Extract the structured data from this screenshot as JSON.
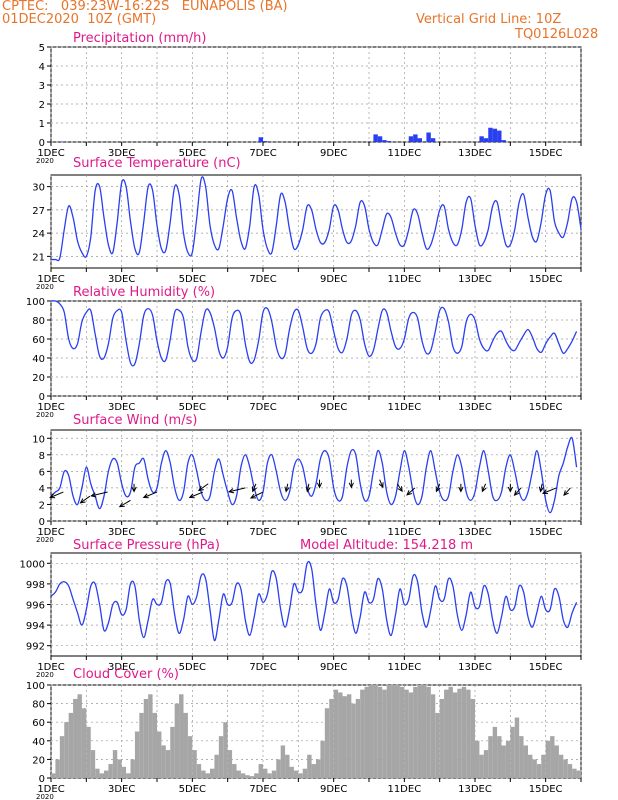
{
  "header": {
    "line1_left": "CPTEC:   039:23W-16:22S   EUNAPOLIS (BA)",
    "line2_left": "01DEC2020  10Z (GMT)",
    "line1_right": "Vertical Grid Line: 10Z",
    "line2_right": "TQ0126L028"
  },
  "colors": {
    "header": "#e8742a",
    "title": "#e0198a",
    "series": "#2a3ff0",
    "cloud": "#a6a6a6",
    "grid": "#9a9a9a",
    "arrow": "#000000"
  },
  "x_ticks": [
    "1DEC",
    "3DEC",
    "5DEC",
    "7DEC",
    "9DEC",
    "11DEC",
    "13DEC",
    "15DEC"
  ],
  "year_label": "2020",
  "chart_data": [
    {
      "id": "precip",
      "type": "bar",
      "title": "Precipitation (mm/h)",
      "ylim": [
        0,
        5
      ],
      "yticks": [
        0,
        1,
        2,
        3,
        4,
        5
      ],
      "x_start_day": 1,
      "step_hours": 3,
      "values": [
        0,
        0,
        0.03,
        0,
        0,
        0,
        0,
        0,
        0,
        0,
        0,
        0,
        0,
        0,
        0,
        0,
        0,
        0,
        0,
        0,
        0,
        0,
        0,
        0,
        0,
        0,
        0,
        0,
        0,
        0,
        0,
        0,
        0,
        0,
        0,
        0,
        0,
        0,
        0,
        0,
        0,
        0,
        0,
        0,
        0,
        0,
        0,
        0.25,
        0.05,
        0,
        0,
        0,
        0,
        0,
        0,
        0,
        0,
        0,
        0,
        0,
        0,
        0,
        0,
        0,
        0,
        0,
        0,
        0,
        0,
        0,
        0,
        0,
        0,
        0.4,
        0.3,
        0.1,
        0.05,
        0,
        0,
        0,
        0,
        0.3,
        0.4,
        0.2,
        0,
        0.5,
        0.2,
        0,
        0,
        0,
        0,
        0,
        0,
        0,
        0,
        0,
        0,
        0.3,
        0.2,
        0.75,
        0.7,
        0.6,
        0.1,
        0,
        0,
        0,
        0,
        0,
        0,
        0,
        0,
        0,
        0,
        0,
        0,
        0,
        0,
        0,
        0
      ]
    },
    {
      "id": "temp",
      "type": "line",
      "title": "Surface Temperature (nC)",
      "ylim": [
        19.5,
        31.5
      ],
      "yticks": [
        21,
        24,
        27,
        30
      ],
      "x_start_day": 1,
      "step_hours": 3,
      "values": [
        20.6,
        20.6,
        20.8,
        24.5,
        27.5,
        26.0,
        23.0,
        21.5,
        21.0,
        23.5,
        29.5,
        30.0,
        26.0,
        22.5,
        21.5,
        25.5,
        30.5,
        30.0,
        25.5,
        22.0,
        21.5,
        25.5,
        30.0,
        29.5,
        25.0,
        22.0,
        21.8,
        25.5,
        30.0,
        29.0,
        24.0,
        21.5,
        21.5,
        26.0,
        31.0,
        30.0,
        25.0,
        22.5,
        22.0,
        25.0,
        28.5,
        29.5,
        26.0,
        23.0,
        22.0,
        25.0,
        30.0,
        29.0,
        24.5,
        22.0,
        21.5,
        25.0,
        29.0,
        28.0,
        24.5,
        22.0,
        22.5,
        24.5,
        27.5,
        27.0,
        24.5,
        22.8,
        22.8,
        24.5,
        27.5,
        27.0,
        24.5,
        22.8,
        23.0,
        25.0,
        28.0,
        27.5,
        24.5,
        22.8,
        22.5,
        24.5,
        26.5,
        26.0,
        24.0,
        22.5,
        22.5,
        24.5,
        27.0,
        26.5,
        24.0,
        22.0,
        22.5,
        24.5,
        27.0,
        27.5,
        24.5,
        22.8,
        22.5,
        24.5,
        28.0,
        28.5,
        25.0,
        22.5,
        22.8,
        24.5,
        27.5,
        28.0,
        25.0,
        22.5,
        22.5,
        24.5,
        28.0,
        29.0,
        26.0,
        23.5,
        23.0,
        25.5,
        29.0,
        29.5,
        25.5,
        24.0,
        23.5,
        25.5,
        28.5,
        28.0,
        24.5
      ]
    },
    {
      "id": "rh",
      "type": "line",
      "title": "Relative Humidity (%)",
      "ylim": [
        0,
        100
      ],
      "yticks": [
        0,
        20,
        40,
        60,
        80,
        100
      ],
      "x_start_day": 1,
      "step_hours": 3,
      "values": [
        100,
        100,
        97,
        88,
        60,
        50,
        55,
        78,
        88,
        90,
        65,
        42,
        40,
        55,
        82,
        90,
        88,
        58,
        35,
        34,
        55,
        85,
        92,
        85,
        58,
        40,
        38,
        60,
        88,
        90,
        82,
        52,
        38,
        40,
        68,
        90,
        88,
        72,
        48,
        40,
        52,
        82,
        90,
        85,
        55,
        36,
        38,
        58,
        88,
        92,
        78,
        52,
        40,
        44,
        70,
        88,
        90,
        72,
        50,
        45,
        55,
        82,
        90,
        88,
        68,
        50,
        46,
        60,
        85,
        90,
        80,
        55,
        42,
        48,
        70,
        90,
        88,
        68,
        52,
        50,
        60,
        82,
        88,
        82,
        58,
        45,
        48,
        68,
        90,
        92,
        78,
        52,
        45,
        52,
        78,
        86,
        80,
        60,
        50,
        48,
        58,
        66,
        68,
        58,
        50,
        48,
        56,
        64,
        70,
        62,
        50,
        46,
        55,
        62,
        66,
        55,
        45,
        50,
        58,
        68
      ]
    },
    {
      "id": "wind",
      "type": "line",
      "title": "Surface Wind (m/s)",
      "ylim": [
        0,
        11
      ],
      "yticks": [
        0,
        2,
        4,
        6,
        8,
        10
      ],
      "x_start_day": 1,
      "step_hours": 3,
      "values": [
        3.0,
        3.5,
        4.0,
        6.0,
        5.5,
        3.0,
        2.0,
        4.0,
        6.5,
        4.5,
        3.0,
        1.5,
        3.0,
        6.0,
        7.5,
        7.0,
        4.5,
        3.0,
        3.5,
        6.5,
        7.0,
        7.5,
        5.0,
        3.5,
        4.0,
        7.0,
        8.5,
        7.0,
        4.0,
        2.5,
        3.5,
        7.0,
        8.0,
        6.0,
        3.5,
        2.5,
        3.0,
        6.0,
        7.5,
        5.5,
        3.5,
        2.0,
        3.0,
        6.5,
        8.0,
        6.5,
        4.0,
        2.5,
        3.5,
        7.0,
        8.0,
        6.0,
        3.5,
        2.5,
        3.5,
        6.5,
        7.5,
        6.5,
        4.0,
        3.0,
        4.5,
        7.5,
        8.5,
        7.5,
        4.0,
        2.5,
        3.0,
        6.5,
        8.5,
        8.0,
        4.5,
        2.5,
        3.0,
        6.0,
        8.5,
        7.0,
        3.5,
        2.0,
        3.0,
        6.0,
        8.5,
        6.5,
        3.5,
        2.0,
        3.0,
        6.5,
        8.5,
        6.0,
        3.5,
        2.5,
        3.0,
        6.0,
        8.0,
        6.5,
        3.5,
        2.5,
        3.5,
        6.5,
        8.5,
        6.0,
        3.0,
        2.5,
        3.5,
        6.5,
        8.0,
        6.0,
        3.5,
        2.5,
        3.5,
        6.0,
        8.5,
        6.0,
        2.5,
        1.0,
        2.5,
        5.5,
        7.0,
        9.0,
        10.0,
        6.5
      ],
      "arrows": [
        {
          "day": 1.35,
          "speed": 3.5,
          "dir_deg": 225
        },
        {
          "day": 2.1,
          "speed": 3.0,
          "dir_deg": 240
        },
        {
          "day": 2.6,
          "speed": 3.5,
          "dir_deg": 210
        },
        {
          "day": 3.35,
          "speed": 4.5,
          "dir_deg": 270
        },
        {
          "day": 3.25,
          "speed": 2.5,
          "dir_deg": 235
        },
        {
          "day": 4.0,
          "speed": 3.5,
          "dir_deg": 225
        },
        {
          "day": 5.3,
          "speed": 3.5,
          "dir_deg": 225
        },
        {
          "day": 5.45,
          "speed": 4.5,
          "dir_deg": 240
        },
        {
          "day": 6.5,
          "speed": 4.0,
          "dir_deg": 210
        },
        {
          "day": 6.8,
          "speed": 4.5,
          "dir_deg": 260
        },
        {
          "day": 7.0,
          "speed": 3.5,
          "dir_deg": 230
        },
        {
          "day": 7.7,
          "speed": 4.5,
          "dir_deg": 265
        },
        {
          "day": 8.3,
          "speed": 4.5,
          "dir_deg": 265
        },
        {
          "day": 8.6,
          "speed": 5.0,
          "dir_deg": 270
        },
        {
          "day": 9.5,
          "speed": 5.0,
          "dir_deg": 270
        },
        {
          "day": 10.3,
          "speed": 5.0,
          "dir_deg": 280
        },
        {
          "day": 10.8,
          "speed": 4.5,
          "dir_deg": 285
        },
        {
          "day": 11.3,
          "speed": 4.0,
          "dir_deg": 245
        },
        {
          "day": 12.0,
          "speed": 4.5,
          "dir_deg": 260
        },
        {
          "day": 12.6,
          "speed": 4.5,
          "dir_deg": 270
        },
        {
          "day": 13.3,
          "speed": 4.5,
          "dir_deg": 260
        },
        {
          "day": 14.0,
          "speed": 4.5,
          "dir_deg": 270
        },
        {
          "day": 14.3,
          "speed": 4.0,
          "dir_deg": 250
        },
        {
          "day": 14.9,
          "speed": 4.5,
          "dir_deg": 265
        },
        {
          "day": 15.3,
          "speed": 4.0,
          "dir_deg": 225
        },
        {
          "day": 15.7,
          "speed": 4.0,
          "dir_deg": 250
        }
      ]
    },
    {
      "id": "pressure",
      "type": "line",
      "title": "Surface Pressure (hPa)",
      "annotation": "Model Altitude: 154.218  m",
      "ylim": [
        991,
        1001
      ],
      "yticks": [
        992,
        994,
        996,
        998,
        1000
      ],
      "x_start_day": 1,
      "step_hours": 3,
      "values": [
        996.8,
        997.2,
        998.0,
        998.2,
        997.8,
        996.5,
        995.2,
        994.0,
        995.5,
        997.8,
        998.0,
        996.0,
        993.5,
        994.2,
        996.0,
        996.2,
        995.0,
        995.5,
        998.0,
        997.8,
        994.5,
        992.8,
        994.5,
        996.5,
        996.0,
        996.2,
        998.2,
        998.0,
        995.0,
        993.2,
        994.5,
        996.8,
        996.0,
        996.8,
        998.8,
        998.5,
        995.5,
        992.5,
        994.5,
        997.0,
        996.0,
        996.2,
        998.0,
        997.5,
        994.5,
        993.0,
        994.8,
        997.0,
        996.2,
        997.0,
        999.2,
        998.5,
        995.5,
        993.8,
        995.5,
        998.0,
        997.2,
        997.5,
        1000.0,
        999.5,
        996.0,
        993.5,
        995.2,
        997.5,
        996.2,
        996.5,
        998.5,
        997.8,
        995.0,
        993.2,
        994.8,
        997.2,
        996.2,
        996.5,
        998.5,
        997.5,
        994.5,
        993.0,
        995.0,
        997.5,
        996.0,
        996.5,
        998.8,
        998.2,
        995.2,
        993.8,
        995.5,
        997.8,
        996.5,
        996.5,
        998.5,
        997.8,
        995.0,
        993.5,
        995.0,
        997.2,
        995.8,
        995.8,
        997.8,
        997.0,
        994.5,
        993.2,
        994.8,
        996.8,
        995.5,
        995.8,
        997.8,
        997.2,
        994.8,
        993.8,
        995.2,
        996.8,
        995.5,
        995.5,
        997.5,
        996.8,
        994.5,
        993.8,
        995.2,
        996.2
      ]
    },
    {
      "id": "cloud",
      "type": "bar",
      "title": "Cloud Cover (%)",
      "ylim": [
        0,
        100
      ],
      "yticks": [
        0,
        20,
        40,
        60,
        80,
        100
      ],
      "x_start_day": 1,
      "step_hours": 3,
      "values": [
        5,
        20,
        45,
        60,
        70,
        85,
        90,
        75,
        55,
        30,
        10,
        5,
        8,
        15,
        30,
        20,
        12,
        5,
        20,
        50,
        70,
        85,
        90,
        70,
        50,
        35,
        30,
        55,
        80,
        90,
        70,
        45,
        30,
        15,
        8,
        5,
        10,
        25,
        45,
        60,
        30,
        15,
        8,
        5,
        3,
        2,
        5,
        15,
        10,
        5,
        8,
        20,
        35,
        25,
        12,
        8,
        5,
        10,
        25,
        15,
        20,
        40,
        75,
        85,
        95,
        92,
        88,
        90,
        80,
        85,
        95,
        98,
        100,
        100,
        98,
        95,
        100,
        100,
        100,
        98,
        95,
        92,
        98,
        100,
        100,
        98,
        90,
        70,
        85,
        95,
        98,
        92,
        96,
        98,
        95,
        85,
        40,
        25,
        30,
        45,
        55,
        45,
        35,
        40,
        55,
        65,
        45,
        35,
        25,
        20,
        15,
        25,
        40,
        45,
        35,
        25,
        20,
        15,
        10,
        8
      ]
    }
  ]
}
